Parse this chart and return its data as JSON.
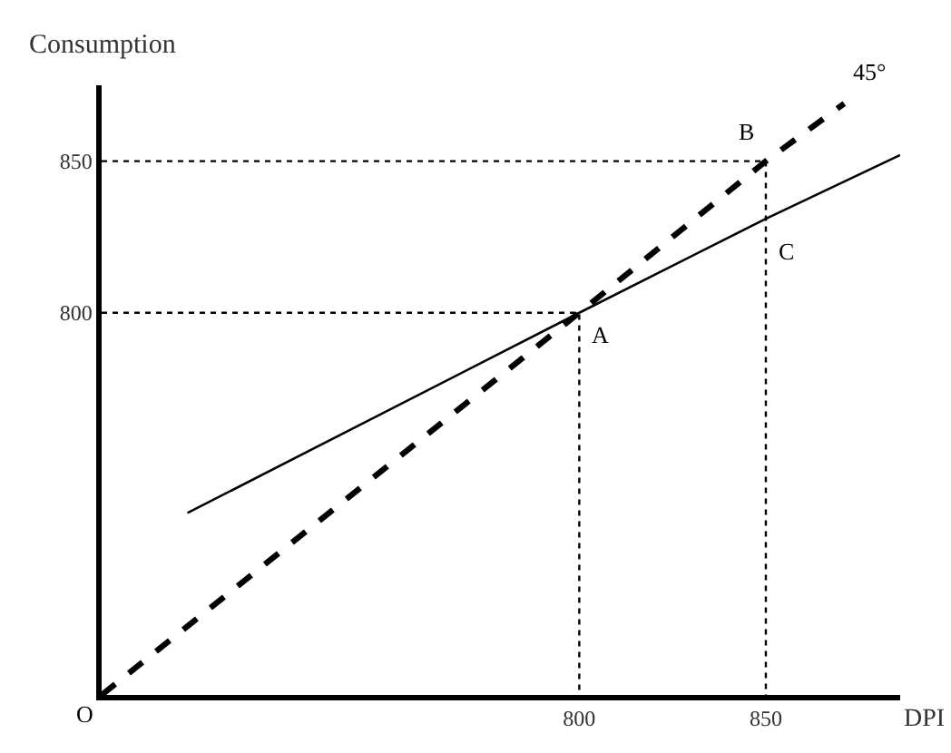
{
  "chart_data": {
    "type": "line",
    "xlabel": "DPI",
    "ylabel": "Consumption",
    "xlim": [
      672,
      886
    ],
    "ylim": [
      674,
      875
    ],
    "xticks": [
      800,
      850
    ],
    "yticks": [
      800,
      850
    ],
    "marker": "none",
    "series": [
      {
        "color": "#000000",
        "line_style": "dashed",
        "x": [
          672,
          800,
          850,
          871
        ],
        "values": [
          674,
          800,
          850,
          869
        ]
      },
      {
        "color": "#000000",
        "line_style": "solid",
        "x": [
          695,
          800,
          850,
          886
        ],
        "values": [
          734,
          800,
          831,
          852
        ]
      },
      {
        "color": "#000000",
        "line_style": "dotted",
        "x": [
          672,
          800,
          800
        ],
        "values": [
          800,
          800,
          674
        ]
      },
      {
        "color": "#000000",
        "line_style": "dotted",
        "x": [
          672,
          850,
          850
        ],
        "values": [
          850,
          850,
          674
        ]
      }
    ],
    "annotations": [
      {
        "text": "O",
        "x": 672,
        "y": 674
      },
      {
        "text": "A",
        "x": 800,
        "y": 800
      },
      {
        "text": "B",
        "x": 850,
        "y": 850
      },
      {
        "text": "C",
        "x": 850,
        "y": 831
      },
      {
        "text": "45°",
        "x": 871,
        "y": 869
      }
    ]
  }
}
